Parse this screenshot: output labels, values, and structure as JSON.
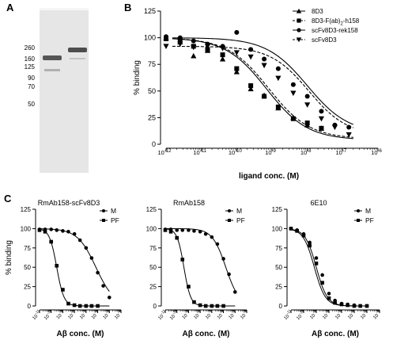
{
  "panels": {
    "A": {
      "letter": "A"
    },
    "B": {
      "letter": "B"
    },
    "C": {
      "letter": "C"
    }
  },
  "gel": {
    "markers": [
      "260",
      "160",
      "125",
      "90",
      "70",
      "50"
    ],
    "background": "#e6e6e6",
    "band_color": "#555555"
  },
  "chart_data": [
    {
      "id": "B",
      "type": "scatter",
      "title": "",
      "xlabel": "ligand conc. (M)",
      "ylabel": "% binding",
      "x_scale": "log10",
      "xlim": [
        1e-12,
        1e-06
      ],
      "ylim": [
        0,
        125
      ],
      "xticks": [
        {
          "v": 1e-12,
          "base": "10",
          "exp": "-12"
        },
        {
          "v": 1e-11,
          "base": "10",
          "exp": "-11"
        },
        {
          "v": 1e-10,
          "base": "10",
          "exp": "-10"
        },
        {
          "v": 1e-09,
          "base": "10",
          "exp": "-9"
        },
        {
          "v": 1e-08,
          "base": "10",
          "exp": "-8"
        },
        {
          "v": 1e-07,
          "base": "10",
          "exp": "-7"
        },
        {
          "v": 1e-06,
          "base": "10",
          "exp": "-6"
        }
      ],
      "yticks": [
        0,
        25,
        50,
        75,
        100,
        125
      ],
      "legend_position": "top-right",
      "series": [
        {
          "name": "8D3",
          "marker": "triangle",
          "dash": false,
          "x": [
            1e-12,
            2.5e-12,
            6e-12,
            1.5e-11,
            4e-11,
            1e-10,
            2.5e-10,
            6e-10,
            1.5e-09,
            4e-09,
            1e-08,
            2.5e-08
          ],
          "y": [
            100,
            96,
            83,
            88,
            80,
            68,
            52,
            46,
            34,
            25,
            18,
            15
          ],
          "fit": {
            "bottom": 4,
            "top": 100,
            "ec50": 7e-10,
            "hill": 0.75
          }
        },
        {
          "name_parts": [
            "8D3-F(ab)",
            "2",
            "-h158"
          ],
          "marker": "square",
          "dash": true,
          "x": [
            1e-12,
            2.5e-12,
            6e-12,
            1.5e-11,
            4e-11,
            1e-10,
            2.5e-10,
            6e-10,
            1.5e-09,
            4e-09,
            1e-08,
            2.5e-08
          ],
          "y": [
            99,
            98,
            92,
            89,
            84,
            71,
            55,
            45,
            35,
            24,
            20,
            15
          ],
          "fit": {
            "bottom": 5,
            "top": 100,
            "ec50": 8e-10,
            "hill": 0.75
          }
        },
        {
          "name": "scFv8D3-rek158",
          "marker": "circle",
          "dash": false,
          "x": [
            1e-12,
            2.5e-12,
            6e-12,
            1.5e-11,
            4e-11,
            1e-10,
            2.5e-10,
            6e-10,
            1.5e-09,
            4e-09,
            1e-08,
            2.5e-08,
            6e-08,
            1.5e-07
          ],
          "y": [
            101,
            100,
            97,
            94,
            92,
            105,
            89,
            80,
            71,
            56,
            45,
            31,
            18,
            16
          ],
          "fit": {
            "bottom": 10,
            "top": 100,
            "ec50": 1e-08,
            "hill": 0.75
          }
        },
        {
          "name": "scFv8D3",
          "marker": "tri-down",
          "dash": true,
          "x": [
            1e-12,
            2.5e-12,
            6e-12,
            1.5e-11,
            4e-11,
            1e-10,
            2.5e-10,
            6e-10,
            1.5e-09,
            4e-09,
            1e-08,
            2.5e-08,
            6e-08,
            1.5e-07
          ],
          "y": [
            92,
            94,
            91,
            92,
            90,
            86,
            82,
            74,
            62,
            48,
            37,
            24,
            16,
            9
          ],
          "fit": {
            "bottom": 8,
            "top": 92,
            "ec50": 1.1e-08,
            "hill": 0.8
          }
        }
      ]
    },
    {
      "id": "C1",
      "type": "scatter",
      "title": "RmAb158-scFv8D3",
      "xlabel_parts": [
        "A",
        "β",
        " conc. (M)"
      ],
      "ylabel": "% binding",
      "x_scale": "log10",
      "xlim": [
        1e-11,
        0.0001
      ],
      "ylim": [
        0,
        125
      ],
      "yticks": [
        0,
        25,
        50,
        75,
        100,
        125
      ],
      "legend_position": "top-right",
      "series": [
        {
          "name": "M",
          "marker": "circle",
          "x": [
            1e-11,
            3e-11,
            1e-10,
            3e-10,
            1e-09,
            3e-09,
            1e-08,
            3e-08,
            1e-07,
            3e-07,
            1e-06,
            3e-06,
            1e-05
          ],
          "y": [
            99,
            99,
            99,
            98,
            97,
            96,
            93,
            85,
            75,
            62,
            43,
            26,
            11
          ],
          "fit": {
            "bottom": 0,
            "top": 100,
            "ec50": 7e-07,
            "hill": 0.55
          }
        },
        {
          "name": "PF",
          "marker": "square",
          "x": [
            1e-11,
            3e-11,
            1e-10,
            3e-10,
            1e-09,
            3e-09,
            1e-08,
            3e-08,
            1e-07,
            3e-07,
            1e-06
          ],
          "y": [
            98,
            96,
            83,
            52,
            21,
            3,
            1,
            0,
            0,
            0,
            0
          ],
          "fit": {
            "bottom": 0,
            "top": 100,
            "ec50": 3e-10,
            "hill": 1.4
          }
        }
      ]
    },
    {
      "id": "C2",
      "type": "scatter",
      "title": "RmAb158",
      "xlabel_parts": [
        "A",
        "β",
        " conc. (M)"
      ],
      "ylabel": "",
      "x_scale": "log10",
      "xlim": [
        1e-11,
        0.0001
      ],
      "ylim": [
        0,
        125
      ],
      "yticks": [
        0,
        25,
        50,
        75,
        100,
        125
      ],
      "legend_position": "top-right",
      "series": [
        {
          "name": "M",
          "marker": "circle",
          "x": [
            1e-11,
            3e-11,
            1e-10,
            3e-10,
            1e-09,
            3e-09,
            1e-08,
            3e-08,
            1e-07,
            3e-07,
            1e-06,
            3e-06,
            1e-05
          ],
          "y": [
            99,
            99,
            98,
            98,
            98,
            97,
            96,
            93,
            89,
            80,
            61,
            41,
            18
          ],
          "fit": {
            "bottom": 0,
            "top": 100,
            "ec50": 1.6e-06,
            "hill": 0.75
          }
        },
        {
          "name": "PF",
          "marker": "square",
          "x": [
            1e-11,
            3e-11,
            1e-10,
            3e-10,
            1e-09,
            3e-09,
            1e-08,
            3e-08,
            1e-07,
            3e-07,
            1e-06
          ],
          "y": [
            98,
            96,
            88,
            60,
            25,
            5,
            1,
            0,
            0,
            0,
            0
          ],
          "fit": {
            "bottom": 0,
            "top": 100,
            "ec50": 4e-10,
            "hill": 1.5
          }
        }
      ]
    },
    {
      "id": "C3",
      "type": "scatter",
      "title": "6E10",
      "xlabel_parts": [
        "A",
        "β",
        " conc. (M)"
      ],
      "ylabel": "",
      "x_scale": "log10",
      "xlim": [
        1e-11,
        0.0001
      ],
      "ylim": [
        0,
        125
      ],
      "yticks": [
        0,
        25,
        50,
        75,
        100,
        125
      ],
      "legend_position": "top-right",
      "series": [
        {
          "name": "M",
          "marker": "circle",
          "x": [
            1e-11,
            3e-11,
            1e-10,
            3e-10,
            1e-09,
            3e-09,
            1e-08,
            3e-08,
            1e-07,
            3e-07,
            1e-06,
            3e-06,
            1e-05
          ],
          "y": [
            100,
            98,
            93,
            82,
            62,
            40,
            16,
            7,
            3,
            2,
            1,
            0,
            0
          ],
          "fit": {
            "bottom": 0,
            "top": 100,
            "ec50": 1e-09,
            "hill": 1
          }
        },
        {
          "name": "PF",
          "marker": "square",
          "x": [
            1e-11,
            3e-11,
            1e-10,
            3e-10,
            1e-09,
            3e-09,
            1e-08,
            3e-08,
            1e-07,
            3e-07,
            1e-06,
            3e-06,
            1e-05
          ],
          "y": [
            100,
            97,
            91,
            78,
            55,
            30,
            10,
            4,
            2,
            1,
            0,
            0,
            0
          ],
          "fit": {
            "bottom": 0,
            "top": 100,
            "ec50": 7e-10,
            "hill": 1
          }
        }
      ]
    }
  ]
}
